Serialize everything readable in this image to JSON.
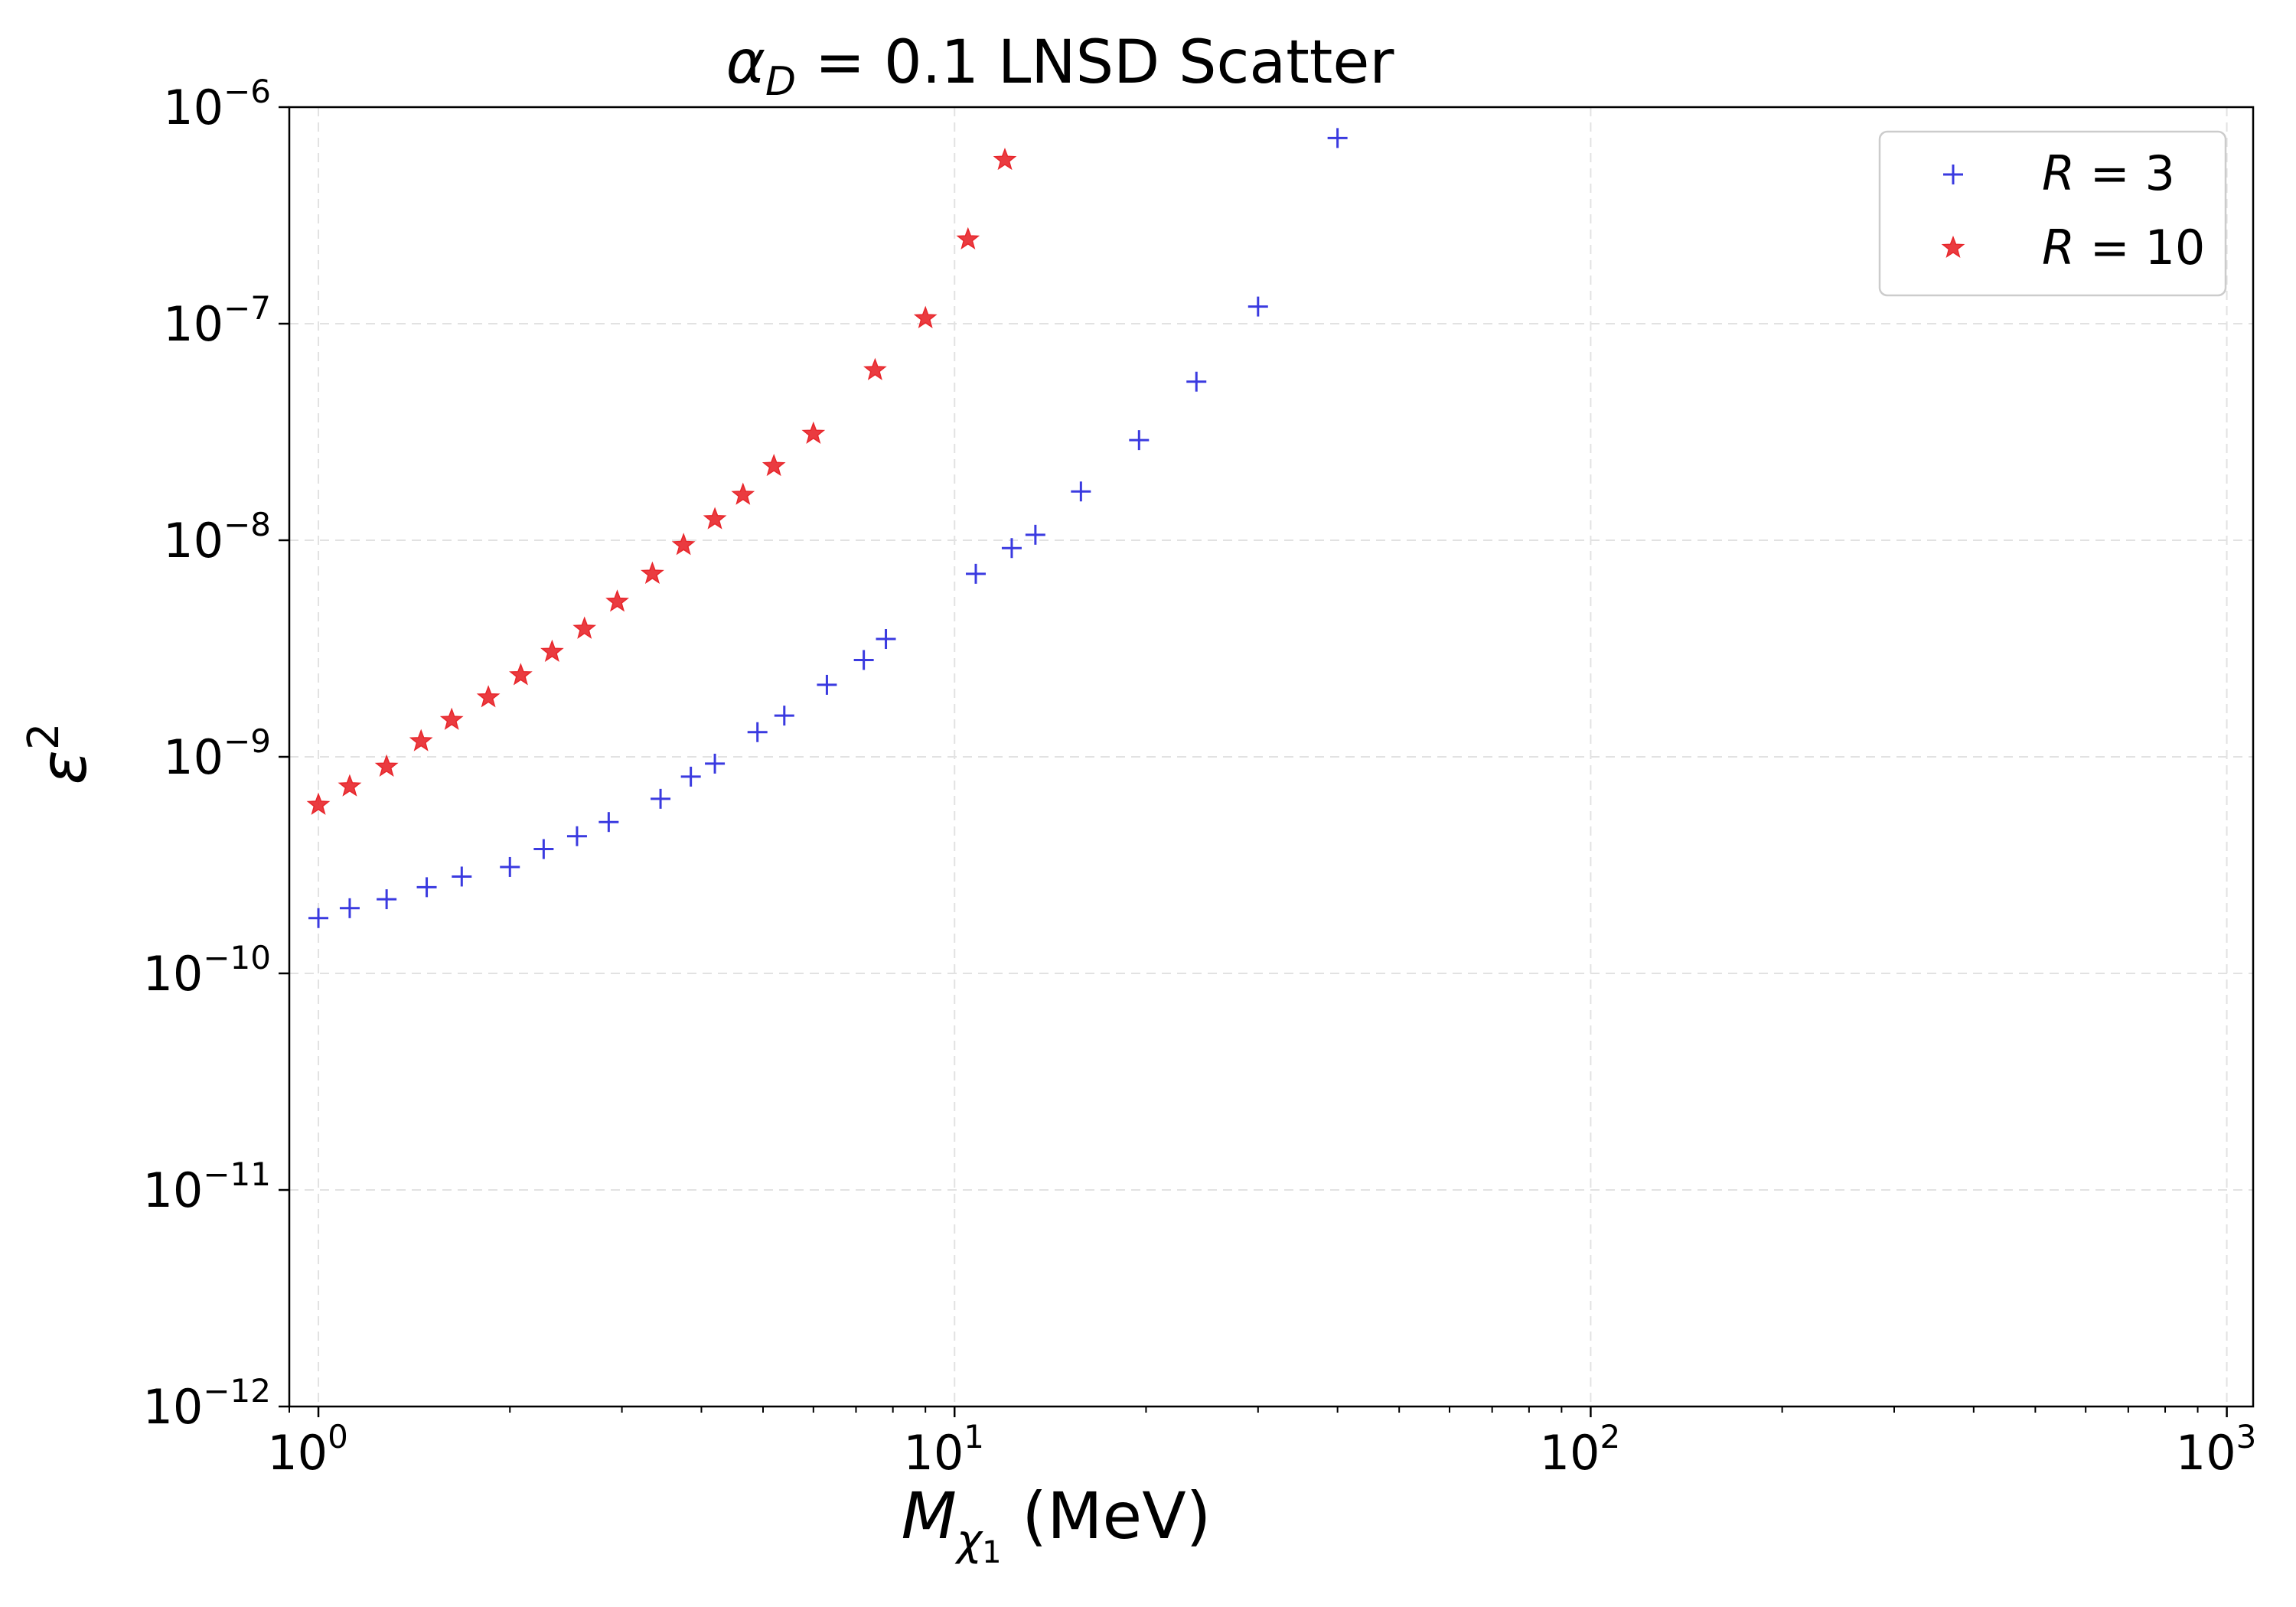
{
  "chart_data": {
    "type": "scatter",
    "title": "α_D = 0.1 LNSD Scatter",
    "title_parts": {
      "symbol": "α",
      "subscript": "D",
      "rest": " = 0.1 LNSD Scatter"
    },
    "xlabel": "M_χ1 (MeV)",
    "xlabel_parts": {
      "symbol": "M",
      "sub_symbol": "χ",
      "sub_index": "1",
      "rest": " (MeV)"
    },
    "ylabel": "ε^2",
    "ylabel_parts": {
      "symbol": "ε",
      "superscript": "2"
    },
    "x_scale": "log",
    "y_scale": "log",
    "xlim": [
      0.9,
      1100
    ],
    "ylim": [
      1e-12,
      1e-06
    ],
    "x_ticks": [
      {
        "base": "10",
        "exp": "0"
      },
      {
        "base": "10",
        "exp": "1"
      },
      {
        "base": "10",
        "exp": "2"
      },
      {
        "base": "10",
        "exp": "3"
      }
    ],
    "y_ticks": [
      {
        "base": "10",
        "exp": "−12"
      },
      {
        "base": "10",
        "exp": "−11"
      },
      {
        "base": "10",
        "exp": "−10"
      },
      {
        "base": "10",
        "exp": "−9"
      },
      {
        "base": "10",
        "exp": "−8"
      },
      {
        "base": "10",
        "exp": "−7"
      },
      {
        "base": "10",
        "exp": "−6"
      }
    ],
    "grid": true,
    "legend_position": "top-right",
    "series": [
      {
        "name": "R = 3",
        "name_parts": {
          "symbol": "R",
          "rest": " = 3"
        },
        "marker": "plus",
        "color": "#3a3ae0",
        "x": [
          1.0,
          1.12,
          1.28,
          1.48,
          1.68,
          2.0,
          2.26,
          2.55,
          2.86,
          3.45,
          3.85,
          4.2,
          4.9,
          5.4,
          6.3,
          7.2,
          7.8,
          10.8,
          12.3,
          13.4,
          15.8,
          19.5,
          24.0,
          30.0,
          40.0
        ],
        "y": [
          1.8e-10,
          2e-10,
          2.2e-10,
          2.5e-10,
          2.8e-10,
          3.1e-10,
          3.75e-10,
          4.3e-10,
          5e-10,
          6.4e-10,
          8.1e-10,
          9.3e-10,
          1.3e-09,
          1.55e-09,
          2.15e-09,
          2.8e-09,
          3.5e-09,
          7e-09,
          9.2e-09,
          1.06e-08,
          1.68e-08,
          2.9e-08,
          5.4e-08,
          1.2e-07,
          7.2e-07
        ]
      },
      {
        "name": "R = 10",
        "name_parts": {
          "symbol": "R",
          "rest": " = 10"
        },
        "marker": "star",
        "color": "#e8262b",
        "x": [
          1.0,
          1.12,
          1.28,
          1.45,
          1.62,
          1.85,
          2.08,
          2.33,
          2.62,
          2.95,
          3.35,
          3.75,
          4.2,
          4.65,
          5.2,
          6.0,
          7.5,
          9.0,
          10.5,
          12.0
        ],
        "y": [
          6e-10,
          7.3e-10,
          9e-10,
          1.18e-09,
          1.48e-09,
          1.88e-09,
          2.38e-09,
          3.05e-09,
          3.9e-09,
          5.2e-09,
          7e-09,
          9.5e-09,
          1.25e-08,
          1.62e-08,
          2.2e-08,
          3.1e-08,
          6.1e-08,
          1.06e-07,
          2.45e-07,
          5.7e-07
        ]
      }
    ]
  }
}
